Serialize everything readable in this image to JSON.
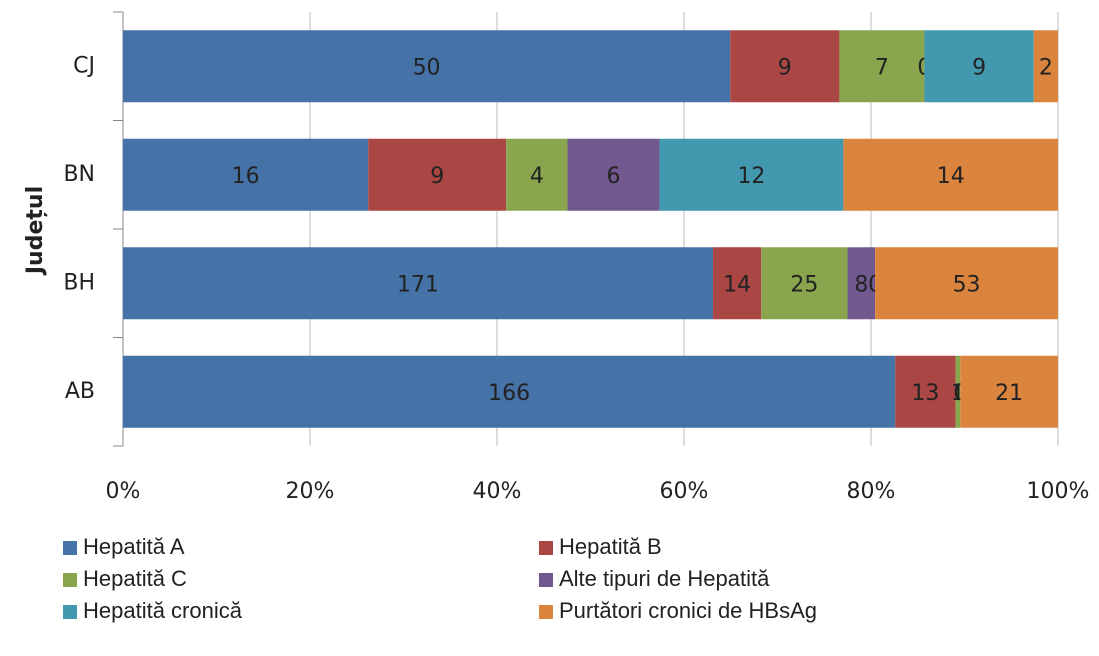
{
  "chart_data": {
    "type": "stacked_bar_100",
    "orientation": "horizontal",
    "y_axis_label": "Județul",
    "categories": [
      "AB",
      "BH",
      "BN",
      "CJ"
    ],
    "series": [
      {
        "name": "Hepatită A",
        "color": "#4572a7",
        "values": [
          166,
          171,
          16,
          50
        ]
      },
      {
        "name": "Hepatită B",
        "color": "#aa4643",
        "values": [
          13,
          14,
          9,
          9
        ]
      },
      {
        "name": "Hepatită C",
        "color": "#89a54e",
        "values": [
          1,
          25,
          4,
          7
        ]
      },
      {
        "name": "Alte tipuri de Hepatită",
        "color": "#71588f",
        "values": [
          0,
          8,
          6,
          0
        ]
      },
      {
        "name": "Hepatită cronică",
        "color": "#4198af",
        "values": [
          0,
          0,
          12,
          9
        ]
      },
      {
        "name": "Purtători cronici de HBsAg",
        "color": "#db843d",
        "values": [
          21,
          53,
          14,
          2
        ]
      }
    ],
    "xlim": [
      0,
      100
    ],
    "xticks": [
      {
        "value": 0,
        "label": "0%"
      },
      {
        "value": 20,
        "label": "20%"
      },
      {
        "value": 40,
        "label": "40%"
      },
      {
        "value": 60,
        "label": "60%"
      },
      {
        "value": 80,
        "label": "80%"
      },
      {
        "value": 100,
        "label": "100%"
      }
    ],
    "grid": true,
    "legend": "bottom"
  }
}
